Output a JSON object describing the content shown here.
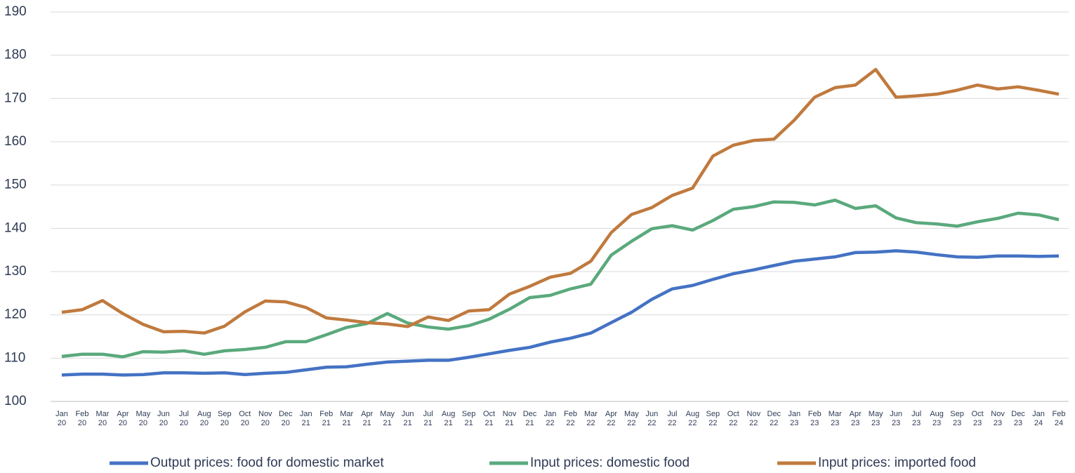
{
  "chart_data": {
    "type": "line",
    "categories": [
      "Jan 20",
      "Feb 20",
      "Mar 20",
      "Apr 20",
      "May 20",
      "Jun 20",
      "Jul 20",
      "Aug 20",
      "Sep 20",
      "Oct 20",
      "Nov 20",
      "Dec 20",
      "Jan 21",
      "Feb 21",
      "Mar 21",
      "Apr 21",
      "May 21",
      "Jun 21",
      "Jul 21",
      "Aug 21",
      "Sep 21",
      "Oct 21",
      "Nov 21",
      "Dec 21",
      "Jan 22",
      "Feb 22",
      "Mar 22",
      "Apr 22",
      "May 22",
      "Jun 22",
      "Jul 22",
      "Aug 22",
      "Sep 22",
      "Oct 22",
      "Nov 22",
      "Dec 22",
      "Jan 23",
      "Feb 23",
      "Mar 23",
      "Apr 23",
      "May 23",
      "Jun 23",
      "Jul 23",
      "Aug 23",
      "Sep 23",
      "Oct 23",
      "Nov 23",
      "Dec 23",
      "Jan 24",
      "Feb 24"
    ],
    "series": [
      {
        "name": "Output prices: food for domestic market",
        "color": "#4472c4",
        "values": [
          106.1,
          106.3,
          106.3,
          106.1,
          106.2,
          106.6,
          106.6,
          106.5,
          106.6,
          106.2,
          106.5,
          106.7,
          107.3,
          107.9,
          108.0,
          108.6,
          109.1,
          109.3,
          109.5,
          109.5,
          110.2,
          111.0,
          111.8,
          112.5,
          113.7,
          114.6,
          115.8,
          118.2,
          120.6,
          123.6,
          126.0,
          126.8,
          128.2,
          129.5,
          130.4,
          131.4,
          132.4,
          132.9,
          133.4,
          134.4,
          134.5,
          134.8,
          134.5,
          133.9,
          133.4,
          133.3,
          133.6,
          133.6,
          133.5,
          133.6
        ]
      },
      {
        "name": "Input prices: domestic food",
        "color": "#5aa97c",
        "values": [
          110.4,
          110.9,
          110.9,
          110.3,
          111.5,
          111.4,
          111.7,
          110.9,
          111.7,
          112.0,
          112.5,
          113.8,
          113.8,
          115.4,
          117.1,
          118.0,
          120.3,
          118.1,
          117.2,
          116.7,
          117.5,
          119.0,
          121.3,
          124.0,
          124.5,
          126.0,
          127.1,
          133.8,
          137.0,
          139.9,
          140.6,
          139.6,
          141.8,
          144.4,
          145.0,
          146.1,
          146.0,
          145.4,
          146.5,
          144.6,
          145.2,
          142.4,
          141.3,
          141.0,
          140.5,
          141.5,
          142.3,
          143.5,
          143.1,
          142.0
        ]
      },
      {
        "name": "Input prices: imported food",
        "color": "#c07a3e",
        "values": [
          120.6,
          121.2,
          123.3,
          120.3,
          117.8,
          116.1,
          116.2,
          115.8,
          117.4,
          120.7,
          123.2,
          123.0,
          121.7,
          119.3,
          118.8,
          118.2,
          117.9,
          117.3,
          119.5,
          118.7,
          120.9,
          121.2,
          124.8,
          126.6,
          128.7,
          129.6,
          132.4,
          139.0,
          143.2,
          144.8,
          147.6,
          149.3,
          156.7,
          159.2,
          160.3,
          160.6,
          165.0,
          170.3,
          172.5,
          173.1,
          176.7,
          170.3,
          170.6,
          171.0,
          171.9,
          173.1,
          172.2,
          172.7,
          171.9,
          171.0
        ]
      }
    ],
    "ylim": [
      100,
      190
    ],
    "yticks": [
      100,
      110,
      120,
      130,
      140,
      150,
      160,
      170,
      180,
      190
    ],
    "grid": true,
    "legend": "bottom"
  }
}
